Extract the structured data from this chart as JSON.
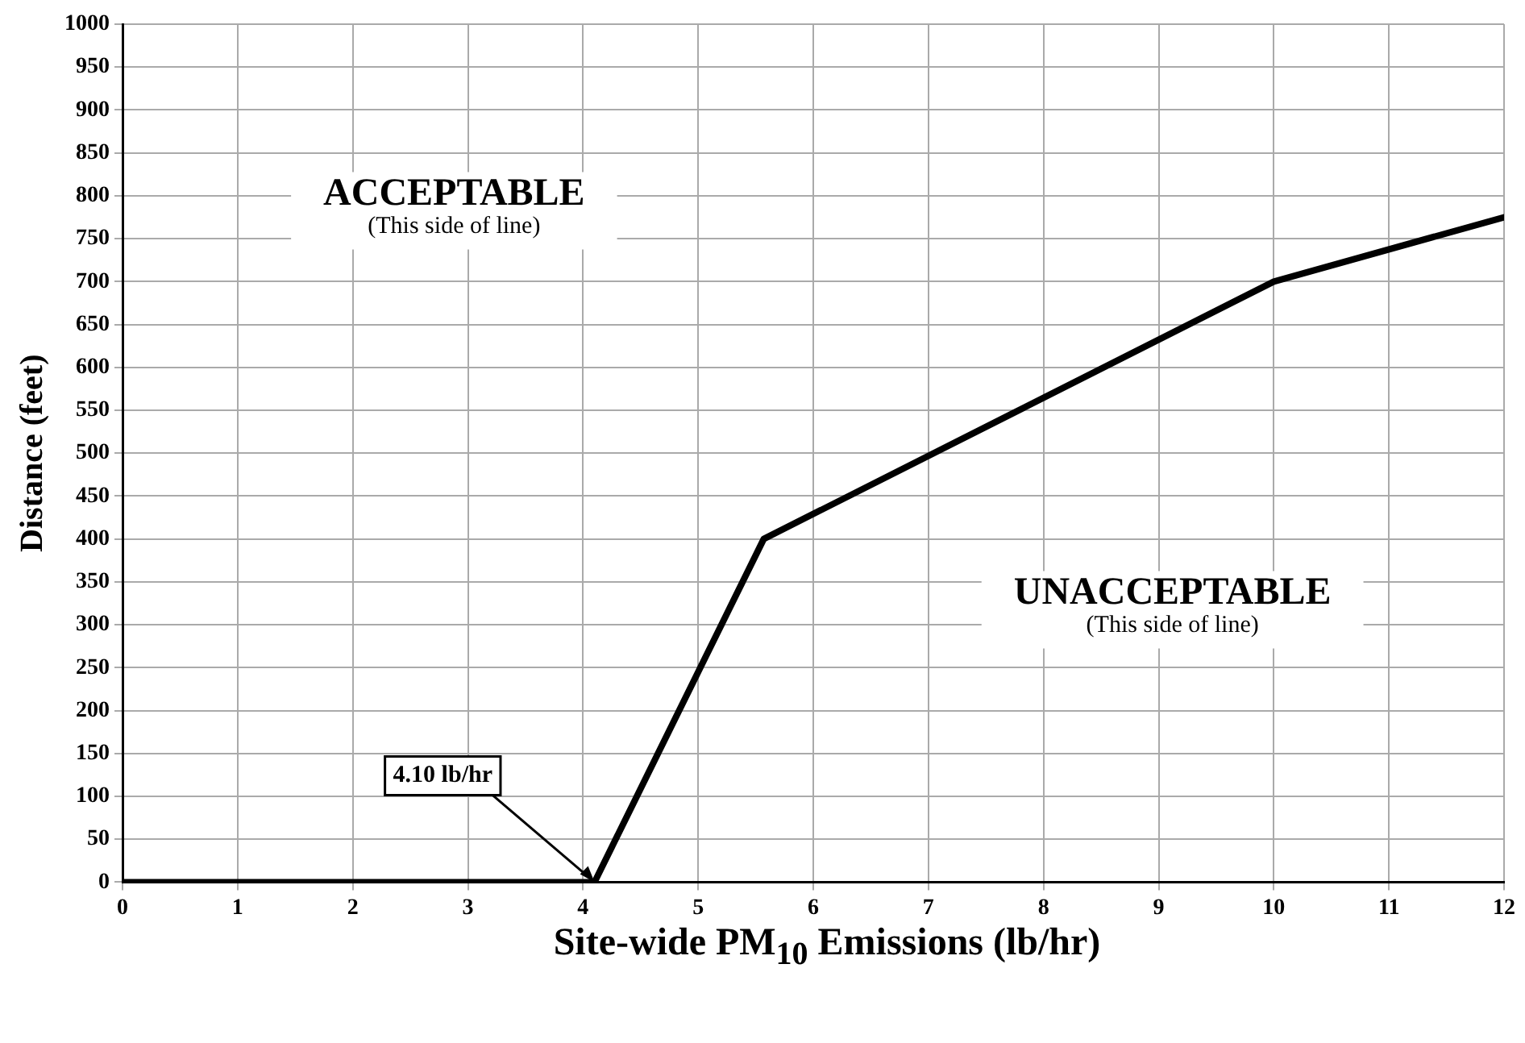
{
  "chart_data": {
    "type": "line",
    "xlabel": "Site-wide PM$_{10}$ Emissions (lb/hr)",
    "ylabel": "Distance (feet)",
    "x": [
      0,
      4.1,
      5.57,
      10,
      12
    ],
    "series": [
      {
        "color": "#000000",
        "values": [
          0,
          0,
          400,
          700,
          775
        ]
      }
    ],
    "xlim": [
      0,
      12
    ],
    "xticks": [
      0,
      1,
      2,
      3,
      4,
      5,
      6,
      7,
      8,
      9,
      10,
      11,
      12
    ],
    "ylim": [
      0,
      1000
    ],
    "yticks": [
      0,
      50,
      100,
      150,
      200,
      250,
      300,
      350,
      400,
      450,
      500,
      550,
      600,
      650,
      700,
      750,
      800,
      850,
      900,
      950,
      1000
    ],
    "grid": true,
    "legend": false,
    "marker": "none",
    "line_style": "solid",
    "annotations": [
      "ACCEPTABLE\n(This side of line)",
      "UNACCEPTABLE\n(This side of line)",
      {
        "text": "4.10 lb/hr",
        "x": 4.1,
        "y": 0
      }
    ]
  }
}
